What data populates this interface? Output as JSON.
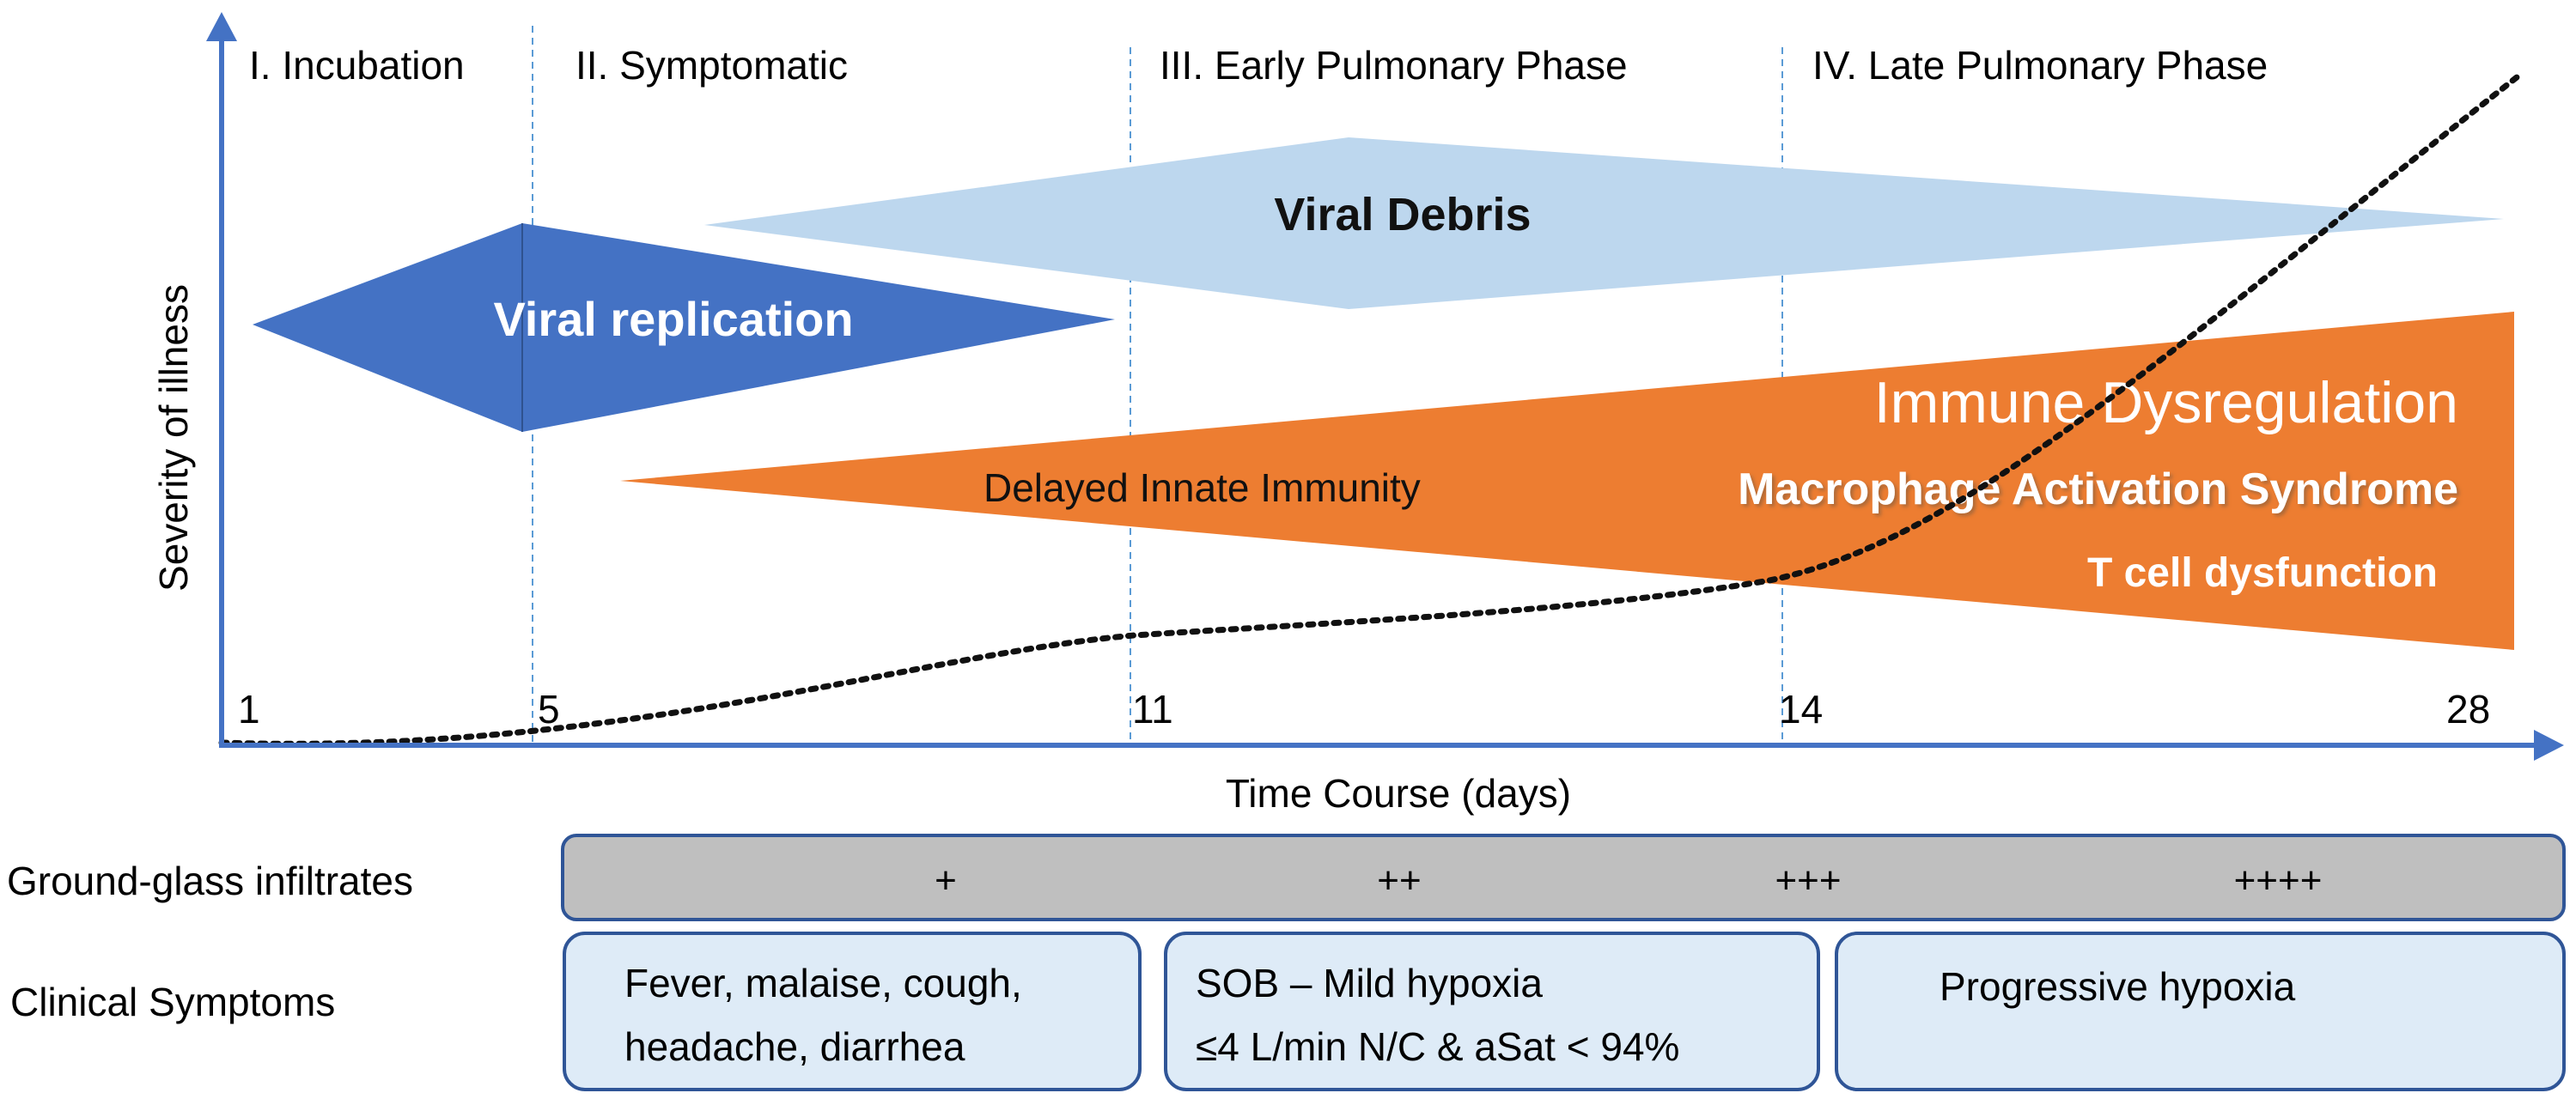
{
  "phases": [
    {
      "label": "I. Incubation"
    },
    {
      "label": "II. Symptomatic"
    },
    {
      "label": "III. Early Pulmonary Phase"
    },
    {
      "label": "IV. Late Pulmonary Phase"
    }
  ],
  "y_axis_label": "Severity of illness",
  "x_axis_label": "Time Course (days)",
  "day_ticks": [
    "1",
    "5",
    "11",
    "14",
    "28"
  ],
  "shapes": {
    "viral_replication": {
      "label": "Viral replication",
      "color": "#4472C4"
    },
    "viral_debris": {
      "label": "Viral Debris",
      "color": "#BDD7EE"
    },
    "immune": {
      "color": "#ED7D31",
      "delayed_label": "Delayed Innate Immunity",
      "dysregulation_label": "Immune Dysregulation",
      "mas_label": "Macrophage Activation Syndrome",
      "tcell_label": "T cell dysfunction"
    }
  },
  "axis_color": "#4472C4",
  "ground_glass": {
    "label": "Ground-glass infiltrates",
    "levels": [
      "+",
      "++",
      "+++",
      "++++"
    ],
    "fill": "#BFBFBF"
  },
  "clinical": {
    "label": "Clinical Symptoms",
    "boxes": [
      {
        "lines": [
          "Fever, malaise, cough,",
          "headache, diarrhea"
        ]
      },
      {
        "lines": [
          "SOB – Mild hypoxia",
          "≤4 L/min N/C & aSat < 94%"
        ]
      },
      {
        "lines": [
          "Progressive hypoxia"
        ]
      }
    ],
    "fill": "#DEEBF7"
  }
}
